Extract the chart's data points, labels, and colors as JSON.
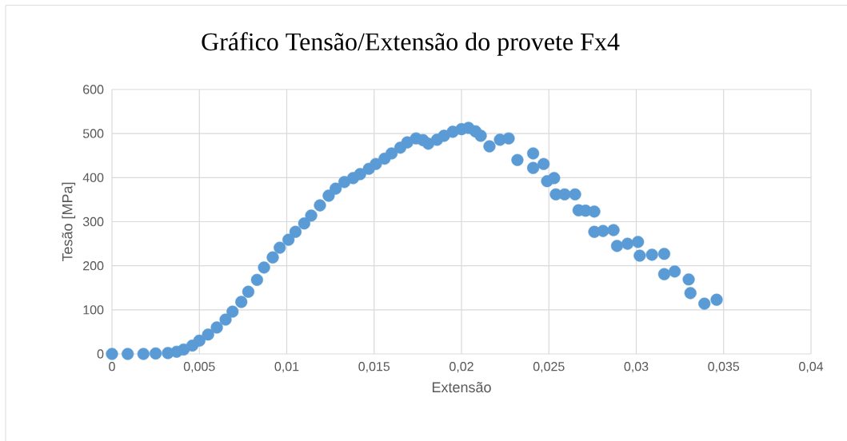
{
  "chart_data": {
    "type": "scatter",
    "title": "Gráfico Tensão/Extensão do provete Fx4",
    "xlabel": "Extensão",
    "ylabel": "Tesão [MPa]",
    "xlim": [
      0,
      0.04
    ],
    "ylim": [
      0,
      600
    ],
    "xticks": [
      0,
      {
        "value": 0.005,
        "label": "0,005"
      },
      {
        "value": 0.01,
        "label": "0,01"
      },
      {
        "value": 0.015,
        "label": "0,015"
      },
      {
        "value": 0.02,
        "label": "0,02"
      },
      {
        "value": 0.025,
        "label": "0,025"
      },
      {
        "value": 0.03,
        "label": "0,03"
      },
      {
        "value": 0.035,
        "label": "0,035"
      },
      {
        "value": 0.04,
        "label": "0,04"
      }
    ],
    "yticks": [
      0,
      100,
      200,
      300,
      400,
      500,
      600
    ],
    "grid": true,
    "marker": "circle",
    "series": [
      {
        "color": "#5b9bd5",
        "x": [
          0,
          0.0009,
          0.0018,
          0.0025,
          0.0032,
          0.0037,
          0.0041,
          0.0046,
          0.005,
          0.0055,
          0.006,
          0.0065,
          0.0069,
          0.0074,
          0.0078,
          0.0083,
          0.0087,
          0.0092,
          0.0096,
          0.0101,
          0.0105,
          0.011,
          0.0114,
          0.0119,
          0.0124,
          0.0128,
          0.0133,
          0.0138,
          0.0142,
          0.0147,
          0.0151,
          0.0156,
          0.016,
          0.0165,
          0.0169,
          0.0174,
          0.0178,
          0.0181,
          0.0186,
          0.019,
          0.0195,
          0.02,
          0.0204,
          0.0208,
          0.0211,
          0.0216,
          0.0222,
          0.0227,
          0.0232,
          0.0241,
          0.0241,
          0.0247,
          0.0249,
          0.0253,
          0.0254,
          0.0259,
          0.0265,
          0.0267,
          0.0271,
          0.0276,
          0.0276,
          0.0281,
          0.0287,
          0.0289,
          0.0295,
          0.0301,
          0.0302,
          0.0309,
          0.0316,
          0.0316,
          0.0322,
          0.033,
          0.0331,
          0.0339,
          0.0346
        ],
        "values": [
          0,
          0,
          0,
          1,
          2,
          5,
          10,
          19,
          30,
          44,
          60,
          78,
          96,
          118,
          141,
          168,
          196,
          219,
          241,
          259,
          277,
          296,
          314,
          337,
          359,
          375,
          390,
          399,
          408,
          420,
          431,
          443,
          455,
          468,
          480,
          489,
          485,
          477,
          486,
          495,
          504,
          510,
          513,
          505,
          495,
          471,
          486,
          489,
          440,
          455,
          422,
          431,
          392,
          399,
          362,
          362,
          362,
          326,
          325,
          323,
          277,
          279,
          281,
          245,
          250,
          254,
          223,
          225,
          227,
          181,
          187,
          169,
          138,
          114,
          123
        ]
      }
    ]
  }
}
